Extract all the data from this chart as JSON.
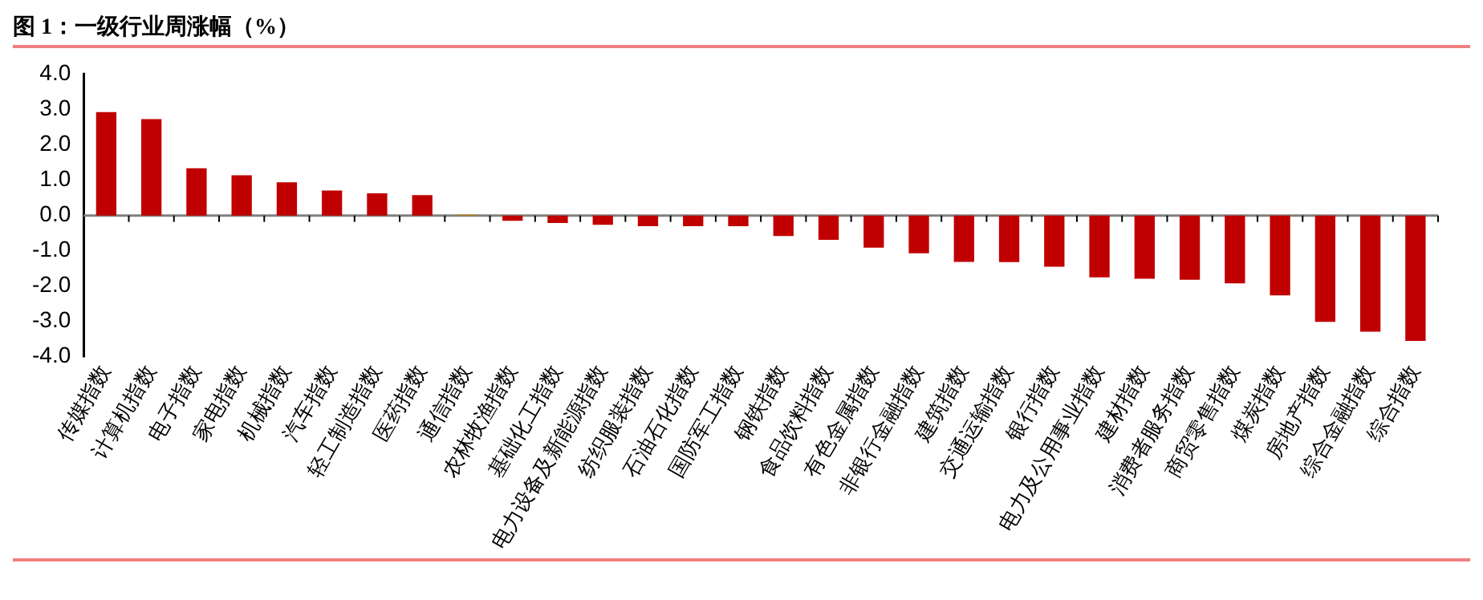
{
  "chart_data": {
    "type": "bar",
    "title": "图 1：一级行业周涨幅（%）",
    "categories": [
      "传媒指数",
      "计算机指数",
      "电子指数",
      "家电指数",
      "机械指数",
      "汽车指数",
      "轻工制造指数",
      "医药指数",
      "通信指数",
      "农林牧渔指数",
      "基础化工指数",
      "电力设备及新能源指数",
      "纺织服装指数",
      "石油石化指数",
      "国防军工指数",
      "钢铁指数",
      "食品饮料指数",
      "有色金属指数",
      "非银行金融指数",
      "建筑指数",
      "交通运输指数",
      "银行指数",
      "电力及公用事业指数",
      "建材指数",
      "消费者服务指数",
      "商贸零售指数",
      "煤炭指数",
      "房地产指数",
      "综合金融指数",
      "综合指数"
    ],
    "values": [
      2.93,
      2.73,
      1.34,
      1.14,
      0.94,
      0.71,
      0.63,
      0.58,
      0.03,
      -0.15,
      -0.21,
      -0.26,
      -0.3,
      -0.3,
      -0.3,
      -0.58,
      -0.69,
      -0.91,
      -1.07,
      -1.31,
      -1.32,
      -1.45,
      -1.75,
      -1.79,
      -1.82,
      -1.92,
      -2.26,
      -3.01,
      -3.29,
      -3.55
    ],
    "colors": [
      "#c00000",
      "#c00000",
      "#c00000",
      "#c00000",
      "#c00000",
      "#c00000",
      "#c00000",
      "#c00000",
      "#b8860b",
      "#c00000",
      "#c00000",
      "#c00000",
      "#c00000",
      "#c00000",
      "#c00000",
      "#c00000",
      "#c00000",
      "#c00000",
      "#c00000",
      "#c00000",
      "#c00000",
      "#c00000",
      "#c00000",
      "#c00000",
      "#c00000",
      "#c00000",
      "#c00000",
      "#c00000",
      "#c00000",
      "#c00000"
    ],
    "ylim": [
      -4,
      4
    ],
    "yticks": [
      {
        "value": -4,
        "label": "-4.0"
      },
      {
        "value": -3,
        "label": "-3.0"
      },
      {
        "value": -2,
        "label": "-2.0"
      },
      {
        "value": -1,
        "label": "-1.0"
      },
      {
        "value": 0,
        "label": "0.0"
      },
      {
        "value": 1,
        "label": "1.0"
      },
      {
        "value": 2,
        "label": "2.0"
      },
      {
        "value": 3,
        "label": "3.0"
      },
      {
        "value": 4,
        "label": "4.0"
      }
    ],
    "legend": false
  }
}
